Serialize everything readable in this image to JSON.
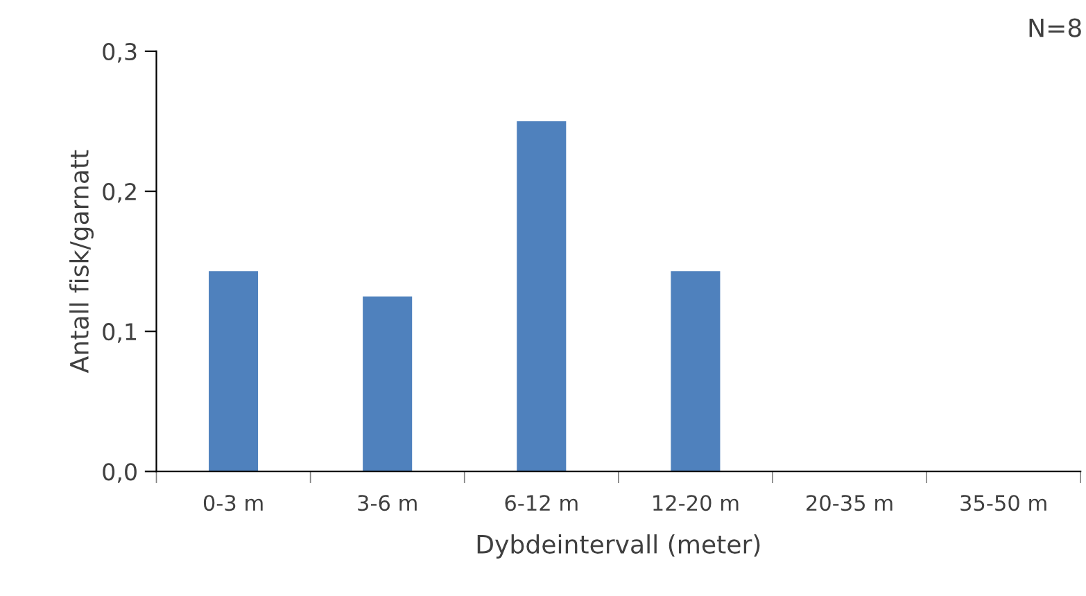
{
  "chart_data": {
    "type": "bar",
    "categories": [
      "0-3 m",
      "3-6 m",
      "6-12 m",
      "12-20 m",
      "20-35 m",
      "35-50 m"
    ],
    "values": [
      0.143,
      0.125,
      0.25,
      0.143,
      0,
      0
    ],
    "color": "#4f81bd",
    "xlabel": "Dybdeintervall (meter)",
    "ylabel": "Antall fisk/garnatt",
    "ylim": [
      0,
      0.3
    ],
    "yticks": [
      {
        "value": 0,
        "label": "0,0"
      },
      {
        "value": 0.1,
        "label": "0,1"
      },
      {
        "value": 0.2,
        "label": "0,2"
      },
      {
        "value": 0.3,
        "label": "0,3"
      }
    ],
    "annotations": [
      "N=8"
    ],
    "grid": false,
    "legend": false
  }
}
